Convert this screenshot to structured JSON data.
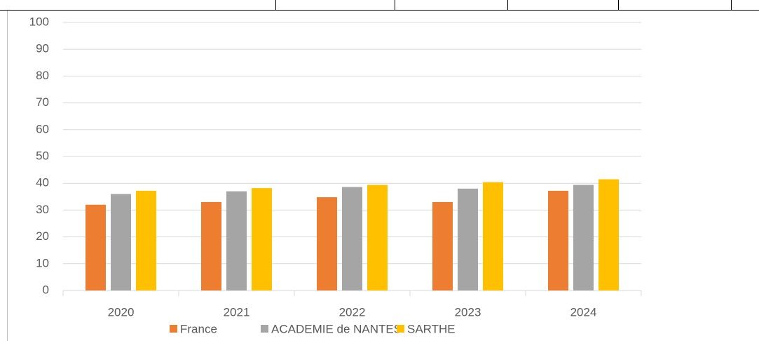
{
  "chart_data": {
    "type": "bar",
    "categories": [
      "2020",
      "2021",
      "2022",
      "2023",
      "2024"
    ],
    "series": [
      {
        "name": "France",
        "color": "#ed7d31",
        "values": [
          32,
          33,
          34.8,
          33,
          37.2
        ]
      },
      {
        "name": "ACADEMIE de NANTES",
        "color": "#a5a5a5",
        "values": [
          36,
          37,
          38.6,
          38,
          39.4
        ]
      },
      {
        "name": "SARTHE",
        "color": "#ffc000",
        "values": [
          37.2,
          38.2,
          39.4,
          40.4,
          41.5
        ]
      }
    ],
    "ylim": [
      0,
      100
    ],
    "yticks": [
      0,
      10,
      20,
      30,
      40,
      50,
      60,
      70,
      80,
      90,
      100
    ],
    "grid": true,
    "legend": "bottom"
  }
}
